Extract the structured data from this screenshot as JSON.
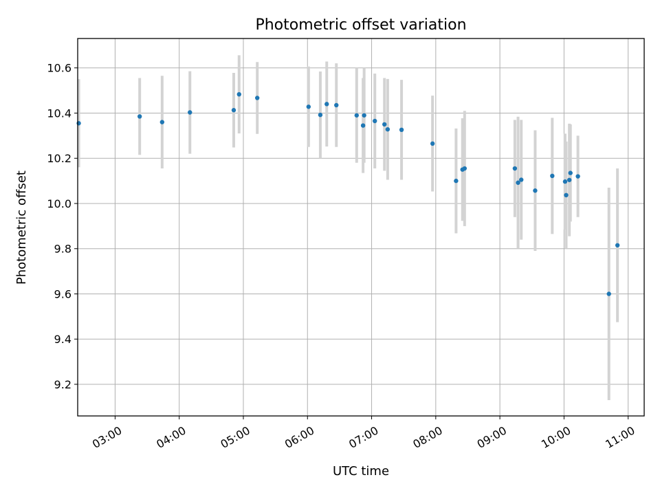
{
  "chart_data": {
    "type": "scatter",
    "title": "Photometric offset variation",
    "xlabel": "UTC time",
    "ylabel": "Photometric offset",
    "xlim": [
      "02:25",
      "11:15"
    ],
    "ylim": [
      9.06,
      10.73
    ],
    "x_ticks": [
      "03:00",
      "04:00",
      "05:00",
      "06:00",
      "07:00",
      "08:00",
      "09:00",
      "10:00",
      "11:00"
    ],
    "y_ticks": [
      "9.2",
      "9.4",
      "9.6",
      "9.8",
      "10.0",
      "10.2",
      "10.4",
      "10.6"
    ],
    "grid": true,
    "marker_color": "#1f77b4",
    "errorbar_color": "#d3d3d3",
    "points": [
      {
        "t": "02:26",
        "y": 10.355,
        "lo": 10.16,
        "hi": 10.55
      },
      {
        "t": "03:23",
        "y": 10.385,
        "lo": 10.215,
        "hi": 10.555
      },
      {
        "t": "03:44",
        "y": 10.36,
        "lo": 10.155,
        "hi": 10.565
      },
      {
        "t": "04:10",
        "y": 10.403,
        "lo": 10.22,
        "hi": 10.585
      },
      {
        "t": "04:51",
        "y": 10.413,
        "lo": 10.248,
        "hi": 10.578
      },
      {
        "t": "04:56",
        "y": 10.483,
        "lo": 10.31,
        "hi": 10.656
      },
      {
        "t": "05:13",
        "y": 10.467,
        "lo": 10.308,
        "hi": 10.626
      },
      {
        "t": "06:01",
        "y": 10.428,
        "lo": 10.25,
        "hi": 10.606
      },
      {
        "t": "06:12",
        "y": 10.392,
        "lo": 10.2,
        "hi": 10.584
      },
      {
        "t": "06:18",
        "y": 10.44,
        "lo": 10.252,
        "hi": 10.628
      },
      {
        "t": "06:27",
        "y": 10.435,
        "lo": 10.25,
        "hi": 10.62
      },
      {
        "t": "06:46",
        "y": 10.39,
        "lo": 10.18,
        "hi": 10.6
      },
      {
        "t": "06:52",
        "y": 10.345,
        "lo": 10.135,
        "hi": 10.555
      },
      {
        "t": "06:53",
        "y": 10.39,
        "lo": 10.18,
        "hi": 10.6
      },
      {
        "t": "07:03",
        "y": 10.365,
        "lo": 10.155,
        "hi": 10.575
      },
      {
        "t": "07:12",
        "y": 10.35,
        "lo": 10.145,
        "hi": 10.555
      },
      {
        "t": "07:15",
        "y": 10.328,
        "lo": 10.105,
        "hi": 10.551
      },
      {
        "t": "07:28",
        "y": 10.326,
        "lo": 10.105,
        "hi": 10.547
      },
      {
        "t": "07:57",
        "y": 10.265,
        "lo": 10.053,
        "hi": 10.477
      },
      {
        "t": "08:19",
        "y": 10.1,
        "lo": 9.868,
        "hi": 10.332
      },
      {
        "t": "08:25",
        "y": 10.15,
        "lo": 9.923,
        "hi": 10.377
      },
      {
        "t": "08:27",
        "y": 10.155,
        "lo": 9.9,
        "hi": 10.41
      },
      {
        "t": "09:14",
        "y": 10.155,
        "lo": 9.94,
        "hi": 10.37
      },
      {
        "t": "09:17",
        "y": 10.092,
        "lo": 9.8,
        "hi": 10.384
      },
      {
        "t": "09:20",
        "y": 10.105,
        "lo": 9.84,
        "hi": 10.37
      },
      {
        "t": "09:33",
        "y": 10.057,
        "lo": 9.79,
        "hi": 10.324
      },
      {
        "t": "09:49",
        "y": 10.122,
        "lo": 9.865,
        "hi": 10.379
      },
      {
        "t": "10:01",
        "y": 10.097,
        "lo": 9.885,
        "hi": 10.309
      },
      {
        "t": "10:02",
        "y": 10.037,
        "lo": 9.8,
        "hi": 10.274
      },
      {
        "t": "10:05",
        "y": 10.104,
        "lo": 9.855,
        "hi": 10.353
      },
      {
        "t": "10:06",
        "y": 10.135,
        "lo": 9.92,
        "hi": 10.35
      },
      {
        "t": "10:13",
        "y": 10.12,
        "lo": 9.94,
        "hi": 10.3
      },
      {
        "t": "10:42",
        "y": 9.6,
        "lo": 9.13,
        "hi": 10.07
      },
      {
        "t": "10:50",
        "y": 9.815,
        "lo": 9.475,
        "hi": 10.155
      }
    ]
  }
}
